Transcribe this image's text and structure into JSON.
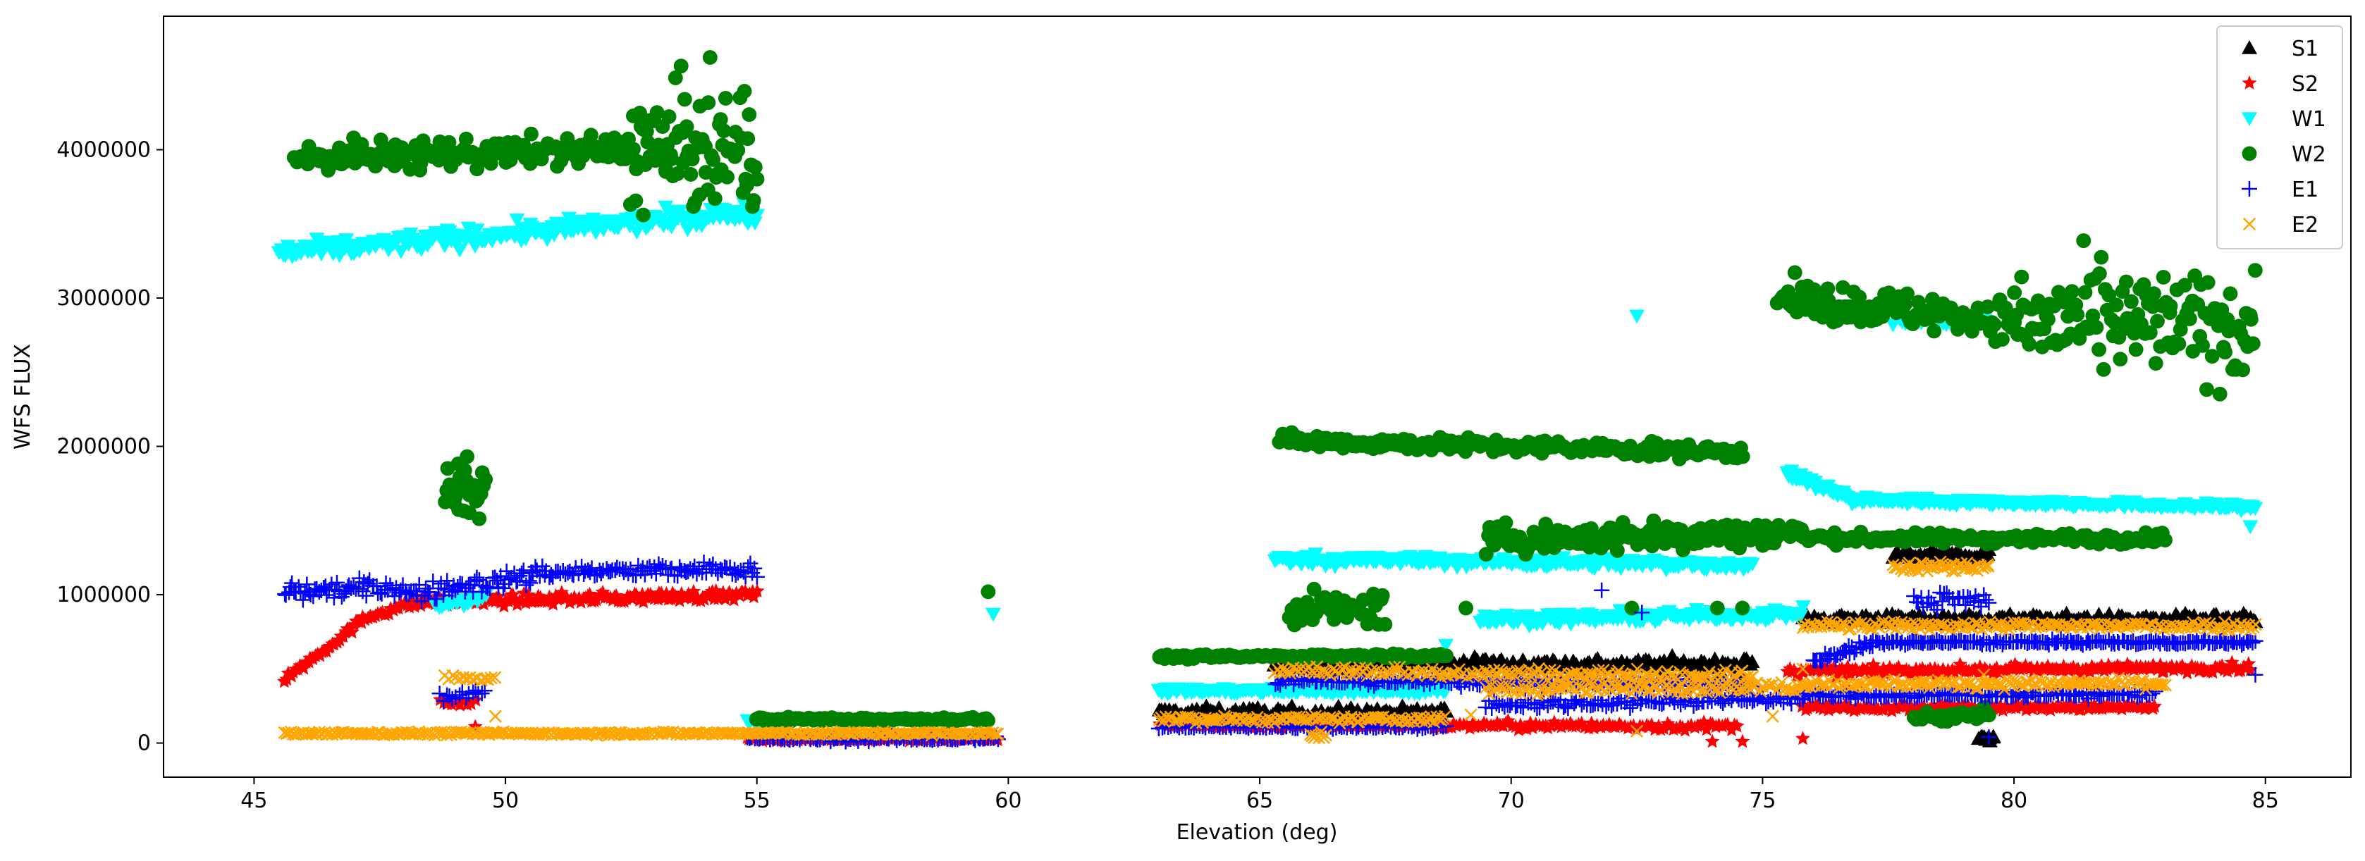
{
  "chart_data": {
    "type": "scatter",
    "title": "",
    "xlabel": "Elevation (deg)",
    "ylabel": "WFS FLUX",
    "xlim": [
      43.2,
      86.7
    ],
    "ylim": [
      -230000,
      4900000
    ],
    "xticks": [
      45,
      50,
      55,
      60,
      65,
      70,
      75,
      80,
      85
    ],
    "xtick_labels": [
      "45",
      "50",
      "55",
      "60",
      "65",
      "70",
      "75",
      "80",
      "85"
    ],
    "yticks": [
      0,
      1000000,
      2000000,
      3000000,
      4000000
    ],
    "ytick_labels": [
      "0",
      "1000000",
      "2000000",
      "3000000",
      "4000000"
    ],
    "grid": false,
    "legend_position": "top-right",
    "series": [
      {
        "name": "S1",
        "marker": "triangle-up",
        "color": "#000000",
        "segments": [
          {
            "x0": 63.0,
            "x1": 68.7,
            "y0": 200000,
            "y1": 200000,
            "noise": 30000,
            "n": 140
          },
          {
            "x0": 65.3,
            "x1": 74.8,
            "y0": 540000,
            "y1": 530000,
            "noise": 30000,
            "n": 180
          },
          {
            "x0": 75.8,
            "x1": 84.8,
            "y0": 840000,
            "y1": 830000,
            "noise": 25000,
            "n": 200
          },
          {
            "x0": 77.6,
            "x1": 79.5,
            "y0": 1260000,
            "y1": 1260000,
            "noise": 25000,
            "n": 60
          },
          {
            "x0": 79.3,
            "x1": 79.6,
            "y0": 40000,
            "y1": 40000,
            "noise": 25000,
            "n": 10
          }
        ],
        "points": [
          {
            "x": 69.5,
            "y": 560000
          },
          {
            "x": 66.5,
            "y": 130000
          },
          {
            "x": 74.5,
            "y": 500000
          }
        ]
      },
      {
        "name": "S2",
        "marker": "star",
        "color": "#ff0000",
        "segments": [
          {
            "x0": 45.6,
            "x1": 47.3,
            "y0": 430000,
            "y1": 860000,
            "noise": 20000,
            "n": 40
          },
          {
            "x0": 47.3,
            "x1": 48.3,
            "y0": 860000,
            "y1": 950000,
            "noise": 20000,
            "n": 20
          },
          {
            "x0": 48.3,
            "x1": 55.0,
            "y0": 950000,
            "y1": 1000000,
            "noise": 25000,
            "n": 150
          },
          {
            "x0": 48.7,
            "x1": 49.4,
            "y0": 270000,
            "y1": 270000,
            "noise": 15000,
            "n": 10
          },
          {
            "x0": 54.8,
            "x1": 59.8,
            "y0": 30000,
            "y1": 30000,
            "noise": 12000,
            "n": 100
          },
          {
            "x0": 63.0,
            "x1": 68.7,
            "y0": 120000,
            "y1": 120000,
            "noise": 15000,
            "n": 120
          },
          {
            "x0": 68.5,
            "x1": 74.5,
            "y0": 120000,
            "y1": 110000,
            "noise": 20000,
            "n": 100
          },
          {
            "x0": 75.5,
            "x1": 84.7,
            "y0": 480000,
            "y1": 510000,
            "noise": 20000,
            "n": 200
          },
          {
            "x0": 75.8,
            "x1": 82.8,
            "y0": 240000,
            "y1": 240000,
            "noise": 15000,
            "n": 140
          }
        ],
        "points": [
          {
            "x": 49.4,
            "y": 110000
          },
          {
            "x": 74.0,
            "y": 10000
          },
          {
            "x": 74.6,
            "y": 10000
          },
          {
            "x": 75.8,
            "y": 30000
          }
        ]
      },
      {
        "name": "W1",
        "marker": "triangle-down",
        "color": "#00ffff",
        "segments": [
          {
            "x0": 45.5,
            "x1": 55.0,
            "y0": 3300000,
            "y1": 3580000,
            "noise": 45000,
            "n": 220
          },
          {
            "x0": 48.6,
            "x1": 49.6,
            "y0": 920000,
            "y1": 990000,
            "noise": 25000,
            "n": 15
          },
          {
            "x0": 54.8,
            "x1": 55.3,
            "y0": 150000,
            "y1": 150000,
            "noise": 10000,
            "n": 8
          },
          {
            "x0": 63.0,
            "x1": 68.7,
            "y0": 350000,
            "y1": 350000,
            "noise": 15000,
            "n": 100
          },
          {
            "x0": 65.3,
            "x1": 74.8,
            "y0": 1240000,
            "y1": 1200000,
            "noise": 25000,
            "n": 200
          },
          {
            "x0": 69.4,
            "x1": 75.8,
            "y0": 830000,
            "y1": 870000,
            "noise": 25000,
            "n": 140
          },
          {
            "x0": 75.5,
            "x1": 76.8,
            "y0": 1820000,
            "y1": 1640000,
            "noise": 25000,
            "n": 40
          },
          {
            "x0": 76.8,
            "x1": 84.8,
            "y0": 1640000,
            "y1": 1590000,
            "noise": 15000,
            "n": 180
          },
          {
            "x0": 77.6,
            "x1": 79.4,
            "y0": 2850000,
            "y1": 2850000,
            "noise": 35000,
            "n": 30
          }
        ],
        "points": [
          {
            "x": 72.5,
            "y": 2880000
          },
          {
            "x": 59.7,
            "y": 870000
          },
          {
            "x": 68.7,
            "y": 660000
          },
          {
            "x": 84.7,
            "y": 1460000
          }
        ]
      },
      {
        "name": "W2",
        "marker": "circle",
        "color": "#008000",
        "segments": [
          {
            "x0": 45.8,
            "x1": 52.5,
            "y0": 3950000,
            "y1": 4000000,
            "noise": 70000,
            "n": 160
          },
          {
            "x0": 52.5,
            "x1": 55.0,
            "y0": 4000000,
            "y1": 4000000,
            "noise": 300000,
            "n": 90
          },
          {
            "x0": 48.8,
            "x1": 49.6,
            "y0": 1700000,
            "y1": 1700000,
            "noise": 150000,
            "n": 30
          },
          {
            "x0": 55.0,
            "x1": 59.6,
            "y0": 160000,
            "y1": 160000,
            "noise": 10000,
            "n": 90
          },
          {
            "x0": 63.0,
            "x1": 68.7,
            "y0": 580000,
            "y1": 590000,
            "noise": 10000,
            "n": 100
          },
          {
            "x0": 65.4,
            "x1": 74.6,
            "y0": 2040000,
            "y1": 1960000,
            "noise": 35000,
            "n": 200
          },
          {
            "x0": 65.6,
            "x1": 67.5,
            "y0": 900000,
            "y1": 900000,
            "noise": 80000,
            "n": 40
          },
          {
            "x0": 69.5,
            "x1": 75.8,
            "y0": 1370000,
            "y1": 1420000,
            "noise": 70000,
            "n": 160
          },
          {
            "x0": 75.8,
            "x1": 83.0,
            "y0": 1380000,
            "y1": 1380000,
            "noise": 25000,
            "n": 150
          },
          {
            "x0": 75.3,
            "x1": 80.0,
            "y0": 3000000,
            "y1": 2850000,
            "noise": 90000,
            "n": 120
          },
          {
            "x0": 80.0,
            "x1": 84.8,
            "y0": 2850000,
            "y1": 2800000,
            "noise": 260000,
            "n": 130
          },
          {
            "x0": 78.0,
            "x1": 79.5,
            "y0": 180000,
            "y1": 180000,
            "noise": 25000,
            "n": 30
          }
        ],
        "points": [
          {
            "x": 59.6,
            "y": 1020000
          },
          {
            "x": 69.1,
            "y": 910000
          },
          {
            "x": 72.4,
            "y": 910000
          },
          {
            "x": 74.1,
            "y": 910000
          },
          {
            "x": 74.6,
            "y": 910000
          },
          {
            "x": 79.4,
            "y": 240000
          }
        ]
      },
      {
        "name": "E1",
        "marker": "plus",
        "color": "#0000ff",
        "segments": [
          {
            "x0": 45.6,
            "x1": 48.0,
            "y0": 1020000,
            "y1": 1050000,
            "noise": 45000,
            "n": 60
          },
          {
            "x0": 48.0,
            "x1": 50.5,
            "y0": 1000000,
            "y1": 1120000,
            "noise": 45000,
            "n": 60
          },
          {
            "x0": 50.5,
            "x1": 55.0,
            "y0": 1150000,
            "y1": 1170000,
            "noise": 35000,
            "n": 100
          },
          {
            "x0": 48.7,
            "x1": 49.6,
            "y0": 300000,
            "y1": 360000,
            "noise": 25000,
            "n": 15
          },
          {
            "x0": 54.8,
            "x1": 59.8,
            "y0": 30000,
            "y1": 30000,
            "noise": 12000,
            "n": 100
          },
          {
            "x0": 63.0,
            "x1": 68.7,
            "y0": 110000,
            "y1": 110000,
            "noise": 10000,
            "n": 100
          },
          {
            "x0": 65.3,
            "x1": 74.8,
            "y0": 420000,
            "y1": 400000,
            "noise": 20000,
            "n": 180
          },
          {
            "x0": 69.5,
            "x1": 75.8,
            "y0": 260000,
            "y1": 300000,
            "noise": 25000,
            "n": 120
          },
          {
            "x0": 75.8,
            "x1": 82.8,
            "y0": 320000,
            "y1": 330000,
            "noise": 15000,
            "n": 140
          },
          {
            "x0": 76.0,
            "x1": 77.2,
            "y0": 560000,
            "y1": 660000,
            "noise": 30000,
            "n": 30
          },
          {
            "x0": 77.2,
            "x1": 84.8,
            "y0": 680000,
            "y1": 680000,
            "noise": 12000,
            "n": 170
          },
          {
            "x0": 78.0,
            "x1": 79.5,
            "y0": 960000,
            "y1": 960000,
            "noise": 40000,
            "n": 30
          }
        ],
        "points": [
          {
            "x": 71.8,
            "y": 1030000
          },
          {
            "x": 72.6,
            "y": 880000
          },
          {
            "x": 84.8,
            "y": 460000
          },
          {
            "x": 79.5,
            "y": 40000
          }
        ]
      },
      {
        "name": "E2",
        "marker": "x",
        "color": "#ffa500",
        "segments": [
          {
            "x0": 45.6,
            "x1": 59.8,
            "y0": 65000,
            "y1": 65000,
            "noise": 8000,
            "n": 300
          },
          {
            "x0": 48.8,
            "x1": 49.8,
            "y0": 440000,
            "y1": 440000,
            "noise": 15000,
            "n": 15
          },
          {
            "x0": 63.0,
            "x1": 68.7,
            "y0": 160000,
            "y1": 160000,
            "noise": 15000,
            "n": 120
          },
          {
            "x0": 65.3,
            "x1": 74.8,
            "y0": 490000,
            "y1": 450000,
            "noise": 25000,
            "n": 180
          },
          {
            "x0": 69.5,
            "x1": 75.8,
            "y0": 360000,
            "y1": 380000,
            "noise": 25000,
            "n": 120
          },
          {
            "x0": 75.8,
            "x1": 83.0,
            "y0": 400000,
            "y1": 400000,
            "noise": 20000,
            "n": 150
          },
          {
            "x0": 75.8,
            "x1": 84.8,
            "y0": 790000,
            "y1": 790000,
            "noise": 20000,
            "n": 190
          },
          {
            "x0": 77.6,
            "x1": 79.5,
            "y0": 1190000,
            "y1": 1190000,
            "noise": 25000,
            "n": 50
          },
          {
            "x0": 66.0,
            "x1": 66.3,
            "y0": 50000,
            "y1": 50000,
            "noise": 25000,
            "n": 8
          }
        ],
        "points": [
          {
            "x": 49.8,
            "y": 180000
          },
          {
            "x": 72.5,
            "y": 80000
          },
          {
            "x": 69.2,
            "y": 190000
          },
          {
            "x": 79.4,
            "y": 460000
          },
          {
            "x": 75.2,
            "y": 180000
          },
          {
            "x": 75.8,
            "y": 500000
          }
        ]
      }
    ]
  }
}
